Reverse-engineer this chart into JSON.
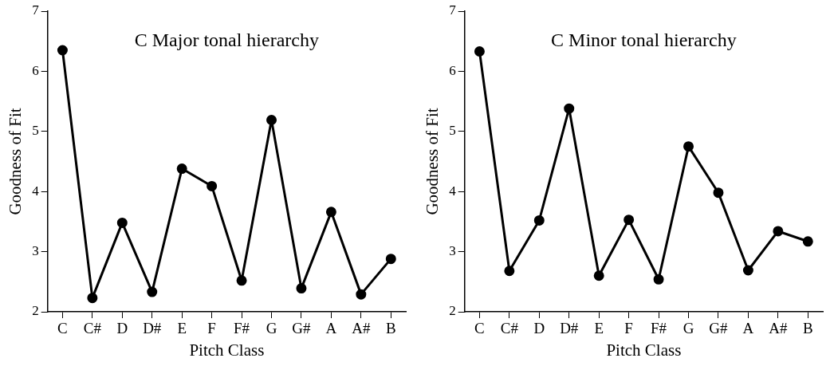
{
  "chart_data": [
    {
      "type": "line",
      "title": "C Major tonal hierarchy",
      "xlabel": "Pitch Class",
      "ylabel": "Goodness of Fit",
      "categories": [
        "C",
        "C#",
        "D",
        "D#",
        "E",
        "F",
        "F#",
        "G",
        "G#",
        "A",
        "A#",
        "B"
      ],
      "series": [
        {
          "color": "#000000",
          "values": [
            6.35,
            2.23,
            3.48,
            2.33,
            4.38,
            4.09,
            2.52,
            5.19,
            2.39,
            3.66,
            2.29,
            2.88
          ]
        }
      ],
      "ylim": [
        2,
        7
      ],
      "yticks": [
        2,
        3,
        4,
        5,
        6,
        7
      ],
      "marker": "circle",
      "legend": false,
      "grid": false
    },
    {
      "type": "line",
      "title": "C Minor tonal hierarchy",
      "xlabel": "Pitch Class",
      "ylabel": "Goodness of Fit",
      "categories": [
        "C",
        "C#",
        "D",
        "D#",
        "E",
        "F",
        "F#",
        "G",
        "G#",
        "A",
        "A#",
        "B"
      ],
      "series": [
        {
          "color": "#000000",
          "values": [
            6.33,
            2.68,
            3.52,
            5.38,
            2.6,
            3.53,
            2.54,
            4.75,
            3.98,
            2.69,
            3.34,
            3.17
          ]
        }
      ],
      "ylim": [
        2,
        7
      ],
      "yticks": [
        2,
        3,
        4,
        5,
        6,
        7
      ],
      "marker": "circle",
      "legend": false,
      "grid": false
    }
  ]
}
